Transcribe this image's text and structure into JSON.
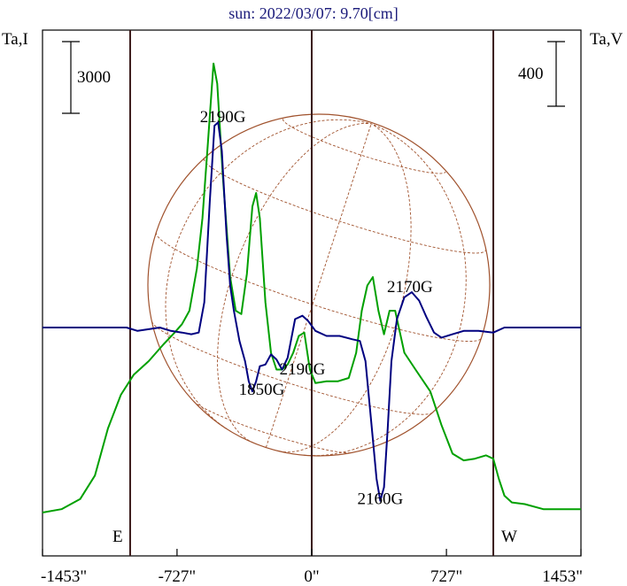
{
  "title": "sun: 2022/03/07: 9.70[cm]",
  "left_axis_label": "Ta,I",
  "right_axis_label": "Ta,V",
  "scale_bar_left": "3000",
  "scale_bar_right": "400",
  "limb_labels": {
    "east": "E",
    "west": "W"
  },
  "colors": {
    "intensity": "#00a000",
    "polarization": "#000080",
    "grid": "#a0522d",
    "vertical_lines": "#3a1a1a"
  },
  "chart_data": {
    "type": "line",
    "x_unit": "arcsec",
    "xlim": [
      -1453,
      1453
    ],
    "x_tick_labels": [
      "-1453\"",
      "-727\"",
      "0\"",
      "727\"",
      "1453\""
    ],
    "x_ticks": [
      -1453,
      -727,
      0,
      727,
      1453
    ],
    "vertical_markers": [
      -980,
      0,
      980
    ],
    "annotations": [
      {
        "text": "2190G",
        "x": -480,
        "y": 12.2
      },
      {
        "text": "1850G",
        "x": -270,
        "y": -4.0
      },
      {
        "text": "2190G",
        "x": -50,
        "y": -2.8
      },
      {
        "text": "2170G",
        "x": 530,
        "y": 2.1
      },
      {
        "text": "2160G",
        "x": 370,
        "y": -10.5
      }
    ],
    "series": [
      {
        "key": "intensity",
        "points": [
          [
            -1453,
            -11.0
          ],
          [
            -1350,
            -10.8
          ],
          [
            -1250,
            -10.2
          ],
          [
            -1170,
            -8.8
          ],
          [
            -1100,
            -6.0
          ],
          [
            -1030,
            -4.0
          ],
          [
            -960,
            -2.8
          ],
          [
            -880,
            -2.0
          ],
          [
            -800,
            -1.0
          ],
          [
            -740,
            -0.3
          ],
          [
            -700,
            0.2
          ],
          [
            -660,
            1.0
          ],
          [
            -620,
            3.5
          ],
          [
            -590,
            6.5
          ],
          [
            -560,
            11.0
          ],
          [
            -530,
            15.7
          ],
          [
            -510,
            14.5
          ],
          [
            -480,
            9.0
          ],
          [
            -440,
            3.0
          ],
          [
            -410,
            1.0
          ],
          [
            -380,
            0.8
          ],
          [
            -350,
            3.2
          ],
          [
            -320,
            7.2
          ],
          [
            -300,
            8.0
          ],
          [
            -280,
            6.5
          ],
          [
            -250,
            1.5
          ],
          [
            -220,
            -1.5
          ],
          [
            -190,
            -2.5
          ],
          [
            -160,
            -2.5
          ],
          [
            -130,
            -2.2
          ],
          [
            -100,
            -1.5
          ],
          [
            -70,
            -0.5
          ],
          [
            -40,
            -0.3
          ],
          [
            -10,
            -2.5
          ],
          [
            20,
            -3.3
          ],
          [
            80,
            -3.2
          ],
          [
            140,
            -3.2
          ],
          [
            200,
            -3.0
          ],
          [
            240,
            -1.5
          ],
          [
            270,
            1.0
          ],
          [
            300,
            2.5
          ],
          [
            330,
            3.0
          ],
          [
            360,
            1.0
          ],
          [
            390,
            -0.4
          ],
          [
            420,
            1.0
          ],
          [
            450,
            1.0
          ],
          [
            500,
            -1.5
          ],
          [
            560,
            -2.5
          ],
          [
            640,
            -3.8
          ],
          [
            700,
            -5.8
          ],
          [
            760,
            -7.5
          ],
          [
            820,
            -7.9
          ],
          [
            880,
            -7.8
          ],
          [
            940,
            -7.6
          ],
          [
            980,
            -7.8
          ],
          [
            1010,
            -9.0
          ],
          [
            1040,
            -10.0
          ],
          [
            1080,
            -10.4
          ],
          [
            1150,
            -10.5
          ],
          [
            1250,
            -10.8
          ],
          [
            1453,
            -10.8
          ]
        ]
      },
      {
        "key": "polarization",
        "points": [
          [
            -1453,
            0.0
          ],
          [
            -1200,
            0.0
          ],
          [
            -1000,
            0.0
          ],
          [
            -940,
            -0.2
          ],
          [
            -880,
            -0.1
          ],
          [
            -820,
            0.0
          ],
          [
            -760,
            -0.2
          ],
          [
            -700,
            -0.3
          ],
          [
            -650,
            -0.4
          ],
          [
            -610,
            -0.3
          ],
          [
            -580,
            1.5
          ],
          [
            -550,
            7.5
          ],
          [
            -525,
            12.0
          ],
          [
            -505,
            12.2
          ],
          [
            -485,
            10.5
          ],
          [
            -460,
            5.5
          ],
          [
            -440,
            2.5
          ],
          [
            -420,
            1.0
          ],
          [
            -390,
            -0.8
          ],
          [
            -360,
            -2.0
          ],
          [
            -340,
            -3.2
          ],
          [
            -320,
            -3.8
          ],
          [
            -300,
            -3.2
          ],
          [
            -280,
            -2.3
          ],
          [
            -250,
            -2.2
          ],
          [
            -220,
            -1.6
          ],
          [
            -190,
            -1.9
          ],
          [
            -160,
            -2.5
          ],
          [
            -130,
            -1.8
          ],
          [
            -90,
            0.5
          ],
          [
            -50,
            0.7
          ],
          [
            -20,
            0.4
          ],
          [
            20,
            -0.2
          ],
          [
            80,
            -0.5
          ],
          [
            150,
            -0.5
          ],
          [
            220,
            -0.7
          ],
          [
            260,
            -0.8
          ],
          [
            290,
            -2.0
          ],
          [
            320,
            -5.5
          ],
          [
            350,
            -9.0
          ],
          [
            370,
            -10.3
          ],
          [
            390,
            -9.5
          ],
          [
            410,
            -6.0
          ],
          [
            430,
            -2.0
          ],
          [
            460,
            0.5
          ],
          [
            500,
            1.8
          ],
          [
            540,
            2.1
          ],
          [
            580,
            1.6
          ],
          [
            620,
            0.6
          ],
          [
            660,
            -0.3
          ],
          [
            700,
            -0.6
          ],
          [
            760,
            -0.4
          ],
          [
            820,
            -0.2
          ],
          [
            900,
            -0.2
          ],
          [
            980,
            -0.3
          ],
          [
            1040,
            0.0
          ],
          [
            1453,
            0.0
          ]
        ]
      }
    ]
  }
}
